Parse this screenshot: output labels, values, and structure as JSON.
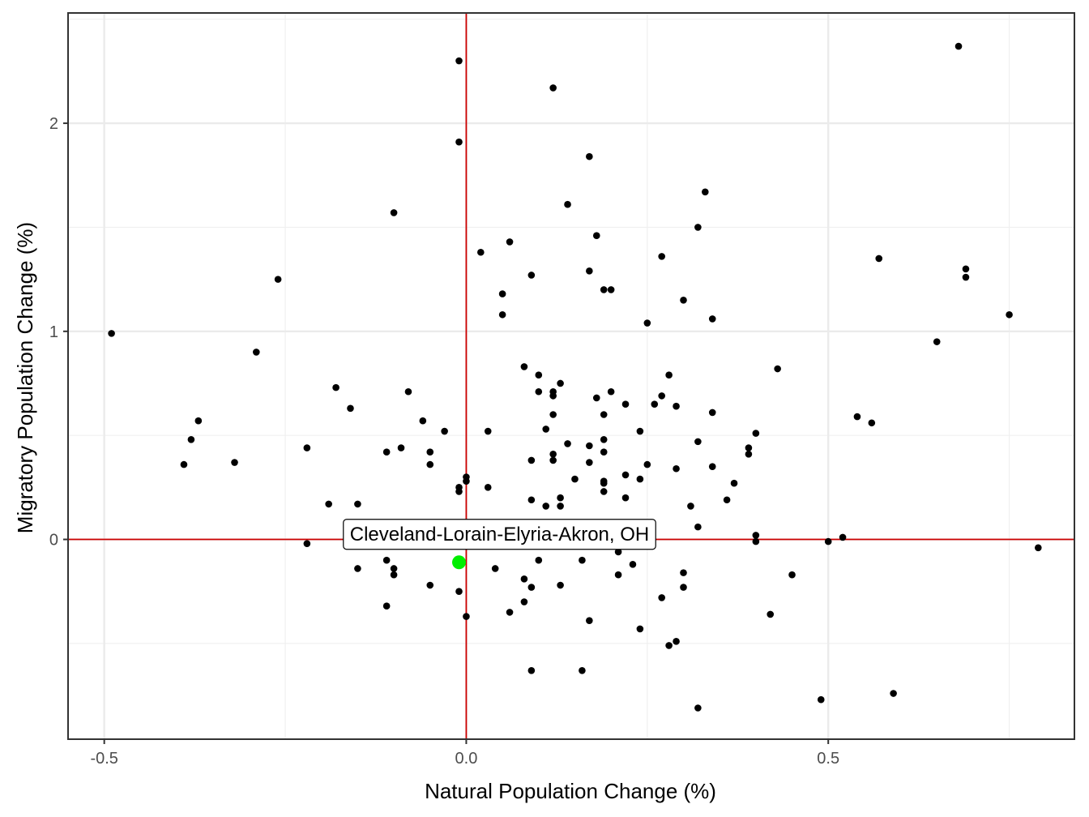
{
  "chart_data": {
    "type": "scatter",
    "title": "",
    "xlabel": "Natural Population Change (%)",
    "ylabel": "Migratory Population Change (%)",
    "xlim": [
      -0.55,
      0.84
    ],
    "ylim": [
      -0.96,
      2.53
    ],
    "x_ticks": [
      -0.5,
      0.0,
      0.5
    ],
    "x_tick_labels": [
      "-0.5",
      "0.0",
      "0.5"
    ],
    "y_ticks": [
      0,
      1,
      2
    ],
    "y_tick_labels": [
      "0",
      "1",
      "2"
    ],
    "grid": true,
    "reference_lines": {
      "x": 0,
      "y": 0,
      "color": "#cc0000"
    },
    "point_color": "#000000",
    "highlight_color": "#00ee00",
    "highlight": {
      "label": "Cleveland-Lorain-Elyria-Akron, OH",
      "x": -0.01,
      "y": -0.11
    },
    "points": [
      [
        -0.49,
        0.99
      ],
      [
        -0.26,
        1.25
      ],
      [
        -0.29,
        0.9
      ],
      [
        -0.37,
        0.57
      ],
      [
        -0.38,
        0.48
      ],
      [
        -0.39,
        0.36
      ],
      [
        -0.32,
        0.37
      ],
      [
        -0.22,
        0.44
      ],
      [
        -0.18,
        0.73
      ],
      [
        -0.16,
        0.63
      ],
      [
        -0.1,
        1.57
      ],
      [
        -0.08,
        0.71
      ],
      [
        -0.06,
        0.57
      ],
      [
        -0.03,
        0.52
      ],
      [
        -0.05,
        0.42
      ],
      [
        -0.05,
        0.36
      ],
      [
        -0.11,
        0.42
      ],
      [
        -0.09,
        0.44
      ],
      [
        -0.19,
        0.17
      ],
      [
        -0.15,
        0.17
      ],
      [
        -0.22,
        -0.02
      ],
      [
        -0.15,
        -0.14
      ],
      [
        -0.11,
        -0.1
      ],
      [
        -0.1,
        -0.14
      ],
      [
        -0.1,
        -0.17
      ],
      [
        -0.11,
        -0.32
      ],
      [
        -0.05,
        -0.22
      ],
      [
        -0.01,
        2.3
      ],
      [
        -0.01,
        1.91
      ],
      [
        -0.01,
        0.25
      ],
      [
        -0.01,
        0.23
      ],
      [
        0.0,
        0.3
      ],
      [
        0.0,
        0.28
      ],
      [
        -0.01,
        -0.25
      ],
      [
        0.0,
        -0.37
      ],
      [
        0.02,
        1.38
      ],
      [
        0.03,
        0.52
      ],
      [
        0.03,
        0.25
      ],
      [
        0.04,
        -0.14
      ],
      [
        0.05,
        1.18
      ],
      [
        0.05,
        1.08
      ],
      [
        0.06,
        1.43
      ],
      [
        0.06,
        -0.35
      ],
      [
        0.08,
        -0.19
      ],
      [
        0.08,
        -0.3
      ],
      [
        0.08,
        0.83
      ],
      [
        0.09,
        1.27
      ],
      [
        0.09,
        0.38
      ],
      [
        0.09,
        0.19
      ],
      [
        0.09,
        -0.23
      ],
      [
        0.09,
        -0.63
      ],
      [
        0.1,
        0.79
      ],
      [
        0.1,
        0.71
      ],
      [
        0.1,
        -0.1
      ],
      [
        0.11,
        0.53
      ],
      [
        0.11,
        0.16
      ],
      [
        0.12,
        2.17
      ],
      [
        0.12,
        0.71
      ],
      [
        0.12,
        0.69
      ],
      [
        0.12,
        0.6
      ],
      [
        0.12,
        0.41
      ],
      [
        0.12,
        0.38
      ],
      [
        0.13,
        0.75
      ],
      [
        0.13,
        0.2
      ],
      [
        0.13,
        0.16
      ],
      [
        0.13,
        -0.22
      ],
      [
        0.14,
        1.61
      ],
      [
        0.14,
        0.46
      ],
      [
        0.15,
        0.29
      ],
      [
        0.16,
        -0.1
      ],
      [
        0.16,
        -0.63
      ],
      [
        0.17,
        1.84
      ],
      [
        0.17,
        1.29
      ],
      [
        0.17,
        0.45
      ],
      [
        0.17,
        0.37
      ],
      [
        0.17,
        -0.39
      ],
      [
        0.18,
        1.46
      ],
      [
        0.18,
        0.68
      ],
      [
        0.19,
        1.2
      ],
      [
        0.19,
        0.6
      ],
      [
        0.19,
        0.48
      ],
      [
        0.19,
        0.42
      ],
      [
        0.19,
        0.28
      ],
      [
        0.19,
        0.27
      ],
      [
        0.19,
        0.23
      ],
      [
        0.2,
        1.2
      ],
      [
        0.2,
        0.71
      ],
      [
        0.21,
        -0.06
      ],
      [
        0.21,
        -0.17
      ],
      [
        0.22,
        0.65
      ],
      [
        0.22,
        0.31
      ],
      [
        0.22,
        0.2
      ],
      [
        0.23,
        -0.12
      ],
      [
        0.24,
        0.52
      ],
      [
        0.24,
        0.29
      ],
      [
        0.24,
        -0.43
      ],
      [
        0.25,
        1.04
      ],
      [
        0.25,
        0.36
      ],
      [
        0.26,
        0.65
      ],
      [
        0.27,
        1.36
      ],
      [
        0.27,
        0.69
      ],
      [
        0.27,
        -0.28
      ],
      [
        0.28,
        0.79
      ],
      [
        0.28,
        -0.51
      ],
      [
        0.29,
        0.64
      ],
      [
        0.29,
        0.34
      ],
      [
        0.29,
        -0.49
      ],
      [
        0.3,
        1.15
      ],
      [
        0.3,
        -0.16
      ],
      [
        0.3,
        -0.23
      ],
      [
        0.31,
        0.16
      ],
      [
        0.32,
        1.5
      ],
      [
        0.32,
        0.47
      ],
      [
        0.32,
        0.06
      ],
      [
        0.32,
        -0.81
      ],
      [
        0.33,
        1.67
      ],
      [
        0.34,
        1.06
      ],
      [
        0.34,
        0.61
      ],
      [
        0.34,
        0.35
      ],
      [
        0.36,
        0.19
      ],
      [
        0.37,
        0.27
      ],
      [
        0.39,
        0.44
      ],
      [
        0.39,
        0.41
      ],
      [
        0.4,
        0.51
      ],
      [
        0.4,
        0.02
      ],
      [
        0.4,
        -0.01
      ],
      [
        0.42,
        -0.36
      ],
      [
        0.43,
        0.82
      ],
      [
        0.45,
        -0.17
      ],
      [
        0.49,
        -0.77
      ],
      [
        0.5,
        -0.01
      ],
      [
        0.52,
        0.01
      ],
      [
        0.54,
        0.59
      ],
      [
        0.56,
        0.56
      ],
      [
        0.57,
        1.35
      ],
      [
        0.59,
        -0.74
      ],
      [
        0.65,
        0.95
      ],
      [
        0.68,
        2.37
      ],
      [
        0.69,
        1.3
      ],
      [
        0.69,
        1.26
      ],
      [
        0.75,
        1.08
      ],
      [
        0.79,
        -0.04
      ]
    ]
  }
}
